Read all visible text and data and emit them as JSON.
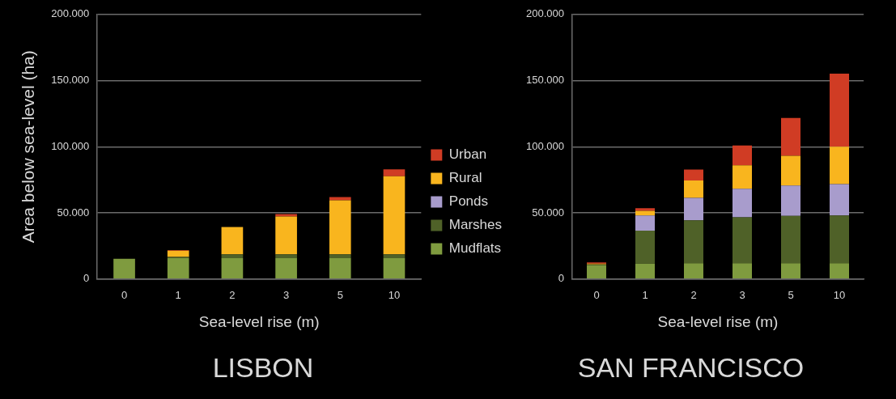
{
  "chart_data": [
    {
      "type": "bar",
      "title": "LISBON",
      "xlabel": "Sea-level rise (m)",
      "ylabel": "Area below sea-level (ha)",
      "categories": [
        "0",
        "1",
        "2",
        "3",
        "5",
        "10"
      ],
      "stacked": true,
      "legend": "right",
      "grid": "y",
      "ylim": [
        0,
        200000
      ],
      "yticks": [
        0,
        {
          "value": 50000,
          "label": "50.000"
        },
        {
          "value": 100000,
          "label": "100.000"
        },
        {
          "value": 150000,
          "label": "150.000"
        },
        {
          "value": 200000,
          "label": "200.000"
        }
      ],
      "series": [
        {
          "name": "Mudflats",
          "color": "#7f9b3f",
          "values": [
            15300,
            15800,
            15800,
            15800,
            15800,
            15800
          ]
        },
        {
          "name": "Marshes",
          "color": "#4f6128",
          "values": [
            0,
            900,
            2900,
            2900,
            2900,
            2900
          ]
        },
        {
          "name": "Ponds",
          "color": "#a89ccc",
          "values": [
            0,
            0,
            0,
            0,
            0,
            0
          ]
        },
        {
          "name": "Rural",
          "color": "#f9b51e",
          "values": [
            0,
            4700,
            20700,
            28600,
            40800,
            59000
          ]
        },
        {
          "name": "Urban",
          "color": "#d03c24",
          "values": [
            0,
            500,
            0,
            1800,
            2400,
            5200
          ]
        }
      ]
    },
    {
      "type": "bar",
      "title": "SAN FRANCISCO",
      "xlabel": "Sea-level rise (m)",
      "categories": [
        "0",
        "1",
        "2",
        "3",
        "5",
        "10"
      ],
      "stacked": true,
      "grid": "y",
      "ylim": [
        0,
        200000
      ],
      "yticks": [
        0,
        {
          "value": 50000,
          "label": "50.000"
        },
        {
          "value": 100000,
          "label": "100.000"
        },
        {
          "value": 150000,
          "label": "150.000"
        },
        {
          "value": 200000,
          "label": "200.000"
        }
      ],
      "series": [
        {
          "color": "#7f9b3f",
          "values": [
            10600,
            11700,
            12000,
            12000,
            12000,
            12000
          ]
        },
        {
          "color": "#4f6128",
          "values": [
            500,
            24800,
            32400,
            34600,
            35700,
            36000
          ]
        },
        {
          "color": "#a89ccc",
          "values": [
            0,
            11500,
            16900,
            21600,
            23000,
            23800
          ]
        },
        {
          "color": "#f9b51e",
          "values": [
            500,
            3600,
            13200,
            17800,
            22500,
            28200
          ]
        },
        {
          "color": "#d03c24",
          "values": [
            1000,
            2000,
            8200,
            14900,
            28600,
            55200
          ]
        }
      ]
    }
  ]
}
